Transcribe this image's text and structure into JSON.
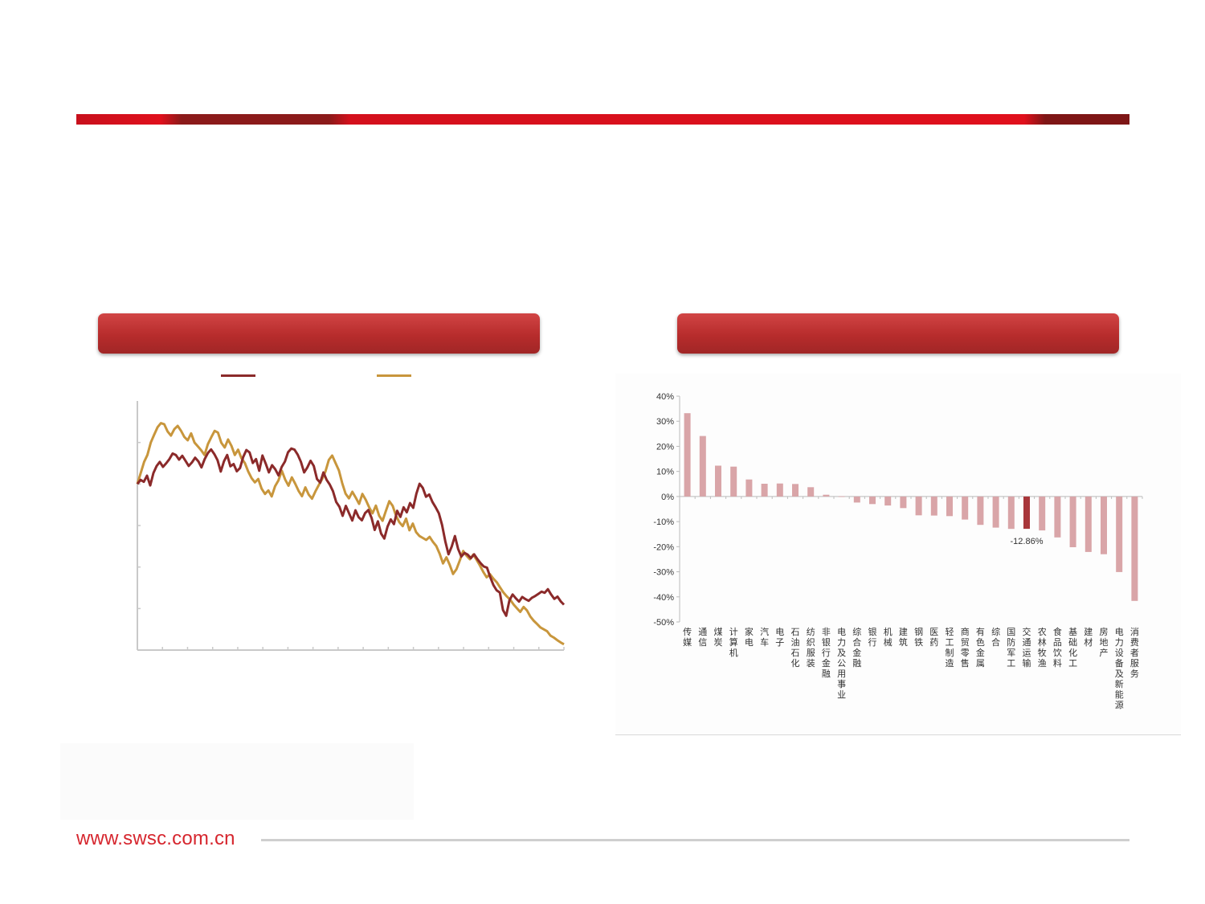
{
  "footer": {
    "url": "www.swsc.com.cn"
  },
  "colors": {
    "brand_red": "#d6262e",
    "line_primary": "#8b2a2a",
    "line_secondary": "#c8963c",
    "bar_default": "#d9a5a8",
    "bar_highlight": "#a8363a"
  },
  "left_chart": {
    "chart_data": {
      "type": "line",
      "title": "",
      "series": [
        {
          "values": [
            100,
            101.5,
            100.8,
            103,
            99.5,
            104,
            106.5,
            108,
            106.2,
            107.5,
            109,
            111,
            110.5,
            108.8,
            110.2,
            108.4,
            106.5,
            107.8,
            109.5,
            108.2,
            106,
            109,
            111.2,
            112.5,
            110.8,
            108.6,
            104.5,
            108.2,
            110.5,
            106.4,
            107.2,
            104.6,
            105.8,
            109.8,
            112.3,
            111.4,
            107.6,
            109,
            104.8,
            110.3,
            107.4,
            104.2,
            106.8,
            105.3,
            103.1,
            106.2,
            108.1,
            111.5,
            112.8,
            112.4,
            110.6,
            108,
            104.2,
            106,
            108.4,
            106.5,
            101.8,
            100.5,
            104.2,
            101.5,
            99.8,
            97.4,
            93.5,
            91.8,
            88.5,
            92.1,
            89.4,
            86.8,
            90.5,
            88,
            86.9,
            89.5,
            90.6,
            87.8,
            83.4,
            86.5,
            82.1,
            80.3,
            84.6,
            87.2,
            85.5,
            90.3,
            88.1,
            91.6,
            89.8,
            93.1,
            91.4,
            96.5,
            100.1,
            98.6,
            95.4,
            96.2,
            93.5,
            91.6,
            89.4,
            85.2,
            79.3,
            74.6,
            77.4,
            81.2,
            76.6,
            73.8,
            75.1,
            74.5,
            73.2,
            74.6,
            72.9,
            71.4,
            70.2,
            69.8,
            66.4,
            63.5,
            61.6,
            60.8,
            54.5,
            52.4,
            57.9,
            60.1,
            58.7,
            57.5,
            59.2,
            58.4,
            57.8,
            58.9,
            59.5,
            60.3,
            61.1,
            60.7,
            62,
            60.1,
            58.5,
            59.3,
            57.6,
            56.4
          ]
        },
        {
          "values": [
            100,
            104,
            108,
            110.5,
            115,
            117.8,
            120.5,
            122,
            121.6,
            119,
            117.5,
            119.8,
            121,
            119.2,
            117,
            115.8,
            118.3,
            115,
            113.6,
            112.2,
            110.5,
            114.4,
            116.9,
            119.2,
            118.6,
            114.9,
            113.2,
            116.1,
            113.8,
            110.5,
            112.4,
            109.3,
            107.6,
            104.5,
            102.1,
            100.6,
            101.8,
            98.3,
            96.4,
            97.7,
            95.5,
            99.2,
            101.3,
            104.8,
            101.6,
            99.4,
            102.4,
            100.1,
            97.5,
            95.6,
            98.8,
            96.2,
            94.7,
            97.3,
            99.6,
            101.8,
            104.5,
            108.7,
            110.3,
            107.6,
            104.9,
            100.3,
            96.5,
            94.8,
            97.2,
            95.1,
            92.8,
            96.4,
            94.3,
            91.6,
            89.4,
            92.2,
            88.5,
            86.7,
            90.3,
            93.8,
            92.1,
            88.6,
            86.2,
            84.8,
            87.5,
            83.3,
            85.7,
            82.6,
            81.2,
            80.5,
            79.8,
            80.9,
            79.1,
            77.6,
            74.8,
            71.3,
            73.5,
            70.8,
            67.5,
            69.2,
            72.4,
            75.8,
            74.1,
            72.8,
            74.5,
            72.6,
            70.5,
            68.2,
            66.3,
            67.4,
            65.8,
            64.5,
            62.6,
            60.8,
            59.4,
            58.2,
            56.5,
            55.1,
            53.8,
            55.6,
            54.3,
            52.1,
            50.6,
            49.4,
            48.2,
            47.5,
            46.8,
            45.2,
            44.5,
            43.6,
            42.8,
            42.1
          ]
        }
      ],
      "grid": false
    }
  },
  "right_chart": {
    "chart_data": {
      "type": "bar",
      "categories": [
        "传媒",
        "通信",
        "煤炭",
        "计算机",
        "家电",
        "汽车",
        "电子",
        "石油石化",
        "纺织服装",
        "非银行金融",
        "电力及公用事业",
        "综合金融",
        "银行",
        "机械",
        "建筑",
        "钢铁",
        "医药",
        "轻工制造",
        "商贸零售",
        "有色金属",
        "综合",
        "国防军工",
        "交通运输",
        "农林牧渔",
        "食品饮料",
        "基础化工",
        "建材",
        "房地产",
        "电力设备及新能源",
        "消费者服务"
      ],
      "values": [
        33.2,
        24.1,
        12.3,
        11.9,
        6.8,
        5.1,
        5.2,
        5.0,
        3.7,
        0.7,
        0.1,
        -2.4,
        -3.0,
        -3.6,
        -4.6,
        -7.5,
        -7.6,
        -7.8,
        -9.2,
        -11.3,
        -12.4,
        -12.9,
        -12.86,
        -13.5,
        -16.3,
        -20.2,
        -22.1,
        -23.0,
        -30.1,
        -41.6
      ],
      "highlight_index": 22,
      "data_labels": [
        {
          "index": 22,
          "text": "-12.86%"
        }
      ],
      "ylim": [
        -50,
        40
      ],
      "yticks": [
        "40%",
        "30%",
        "20%",
        "10%",
        "0%",
        "-10%",
        "-20%",
        "-30%",
        "-40%",
        "-50%"
      ],
      "grid": false
    }
  }
}
